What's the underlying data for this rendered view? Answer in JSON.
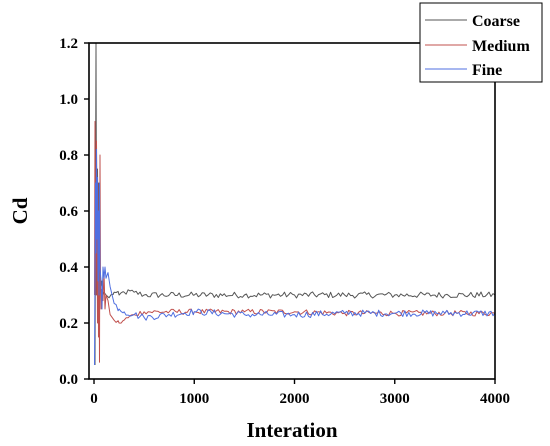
{
  "chart_data": {
    "type": "line",
    "xlabel": "Interation",
    "ylabel": "Cd",
    "xlim": [
      -50,
      4000
    ],
    "ylim": [
      0,
      1.2
    ],
    "x_ticks": [
      0,
      1000,
      2000,
      3000,
      4000
    ],
    "x_tick_labels": [
      "0",
      "1000",
      "2000",
      "3000",
      "4000"
    ],
    "y_ticks": [
      0,
      0.2,
      0.4,
      0.6,
      0.8,
      1.0,
      1.2
    ],
    "y_tick_labels": [
      "0.0",
      "0.2",
      "0.4",
      "0.6",
      "0.8",
      "1.0",
      "1.2"
    ],
    "grid": false,
    "legend_position": "top-right",
    "series": [
      {
        "name": "Coarse",
        "color": "#555555",
        "x": [
          10,
          15,
          20,
          25,
          30,
          35,
          40,
          45,
          50,
          55,
          60,
          70,
          80,
          90,
          100,
          120,
          150,
          200,
          250,
          300,
          400,
          500,
          750,
          1000,
          1500,
          2000,
          2500,
          3000,
          3500,
          4000
        ],
        "y": [
          0.05,
          0.6,
          1.2,
          0.5,
          0.3,
          0.75,
          0.55,
          0.7,
          0.35,
          0.6,
          0.4,
          0.33,
          0.35,
          0.3,
          0.31,
          0.3,
          0.29,
          0.31,
          0.3,
          0.31,
          0.31,
          0.3,
          0.3,
          0.3,
          0.3,
          0.3,
          0.3,
          0.3,
          0.3,
          0.3
        ],
        "noise": 0.011
      },
      {
        "name": "Medium",
        "color": "#c0504d",
        "x": [
          5,
          10,
          15,
          20,
          25,
          30,
          35,
          40,
          45,
          50,
          55,
          60,
          65,
          70,
          80,
          90,
          100,
          110,
          120,
          140,
          160,
          200,
          250,
          300,
          400,
          500,
          750,
          1000,
          1500,
          2000,
          2500,
          3000,
          3500,
          4000
        ],
        "y": [
          0.3,
          0.92,
          0.5,
          0.3,
          0.85,
          0.55,
          0.2,
          0.7,
          0.15,
          0.55,
          0.06,
          0.8,
          0.35,
          0.25,
          0.32,
          0.28,
          0.38,
          0.25,
          0.3,
          0.28,
          0.23,
          0.21,
          0.2,
          0.21,
          0.23,
          0.24,
          0.24,
          0.24,
          0.24,
          0.24,
          0.235,
          0.235,
          0.235,
          0.235
        ],
        "noise": 0.01
      },
      {
        "name": "Fine",
        "color": "#4f6fe0",
        "x": [
          5,
          10,
          15,
          20,
          25,
          30,
          35,
          40,
          45,
          50,
          55,
          60,
          70,
          80,
          90,
          100,
          110,
          120,
          140,
          160,
          180,
          200,
          250,
          300,
          400,
          500,
          750,
          1000,
          1500,
          2000,
          2500,
          3000,
          3500,
          4000
        ],
        "y": [
          0.05,
          0.4,
          0.7,
          0.45,
          0.82,
          0.5,
          0.72,
          0.35,
          0.6,
          0.3,
          0.7,
          0.4,
          0.35,
          0.25,
          0.4,
          0.36,
          0.4,
          0.36,
          0.38,
          0.33,
          0.3,
          0.27,
          0.25,
          0.24,
          0.23,
          0.22,
          0.23,
          0.24,
          0.23,
          0.23,
          0.235,
          0.235,
          0.235,
          0.235
        ],
        "noise": 0.012
      }
    ]
  }
}
